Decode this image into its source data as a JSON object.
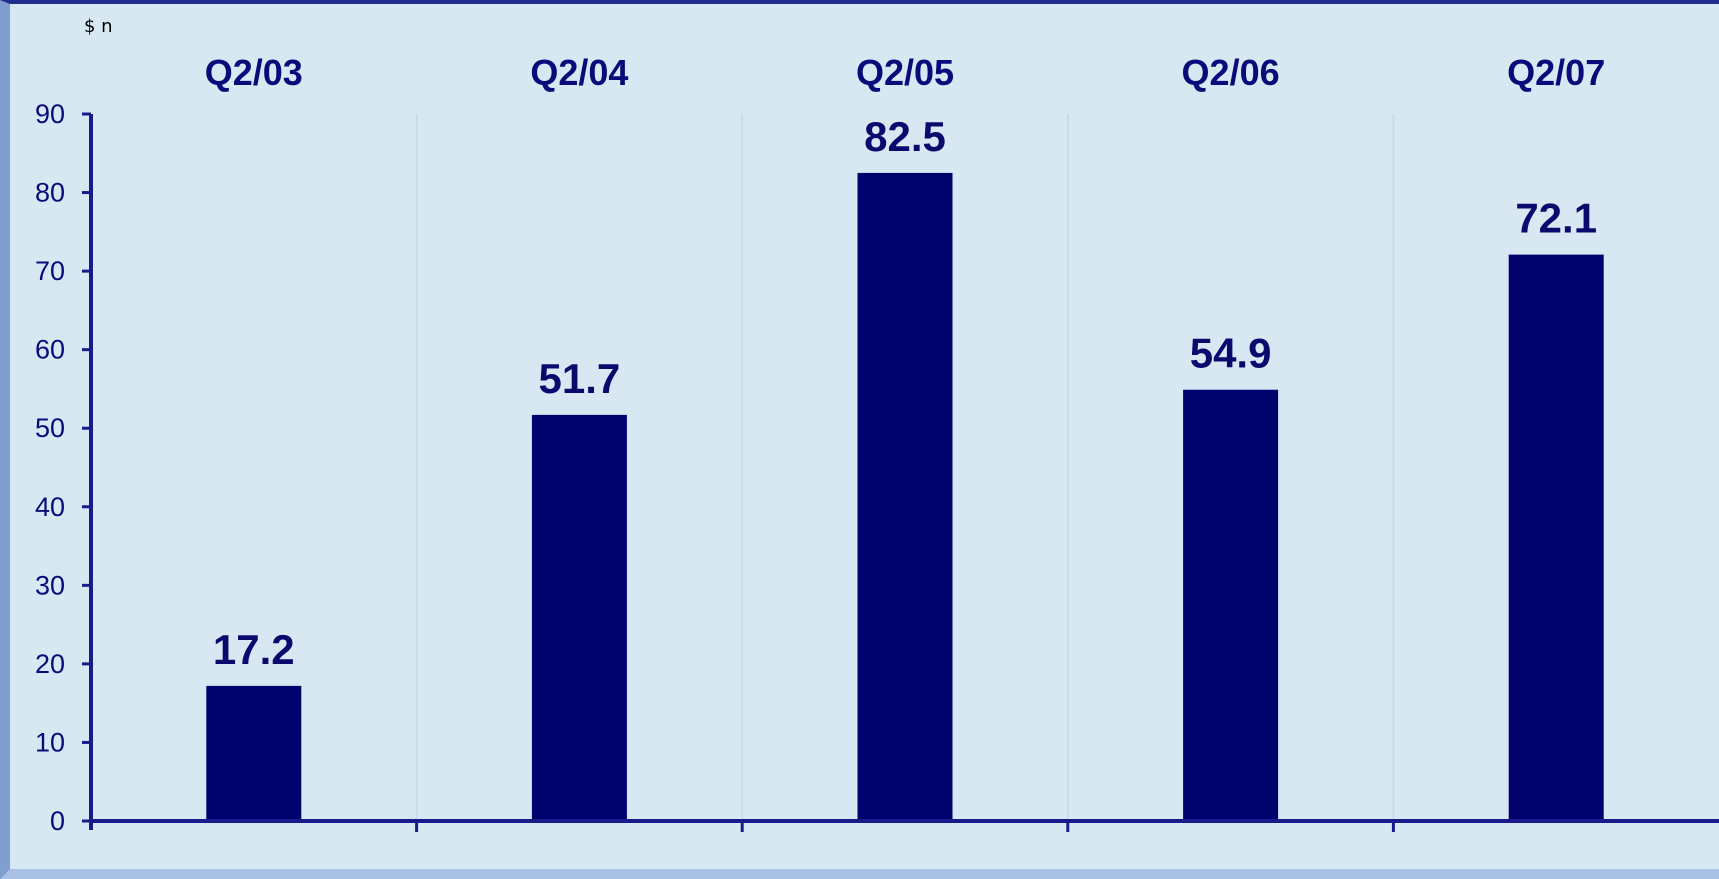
{
  "chart_data": {
    "type": "bar",
    "unit_label": "$ n",
    "categories": [
      "Q2/03",
      "Q2/04",
      "Q2/05",
      "Q2/06",
      "Q2/07"
    ],
    "values": [
      17.2,
      51.7,
      82.5,
      54.9,
      72.1
    ],
    "data_labels": [
      "17.2",
      "51.7",
      "82.5",
      "54.9",
      "72.1"
    ],
    "yticks": [
      "0",
      "10",
      "20",
      "30",
      "40",
      "50",
      "60",
      "70",
      "80",
      "90"
    ],
    "ylim": [
      0,
      90
    ],
    "category_axis_position": "top",
    "grid": "vertical separators",
    "colors": {
      "bar": "#02026e",
      "axis": "#1a1a8a",
      "text": "#0a0a7a",
      "background": "#d8e8f3"
    }
  }
}
